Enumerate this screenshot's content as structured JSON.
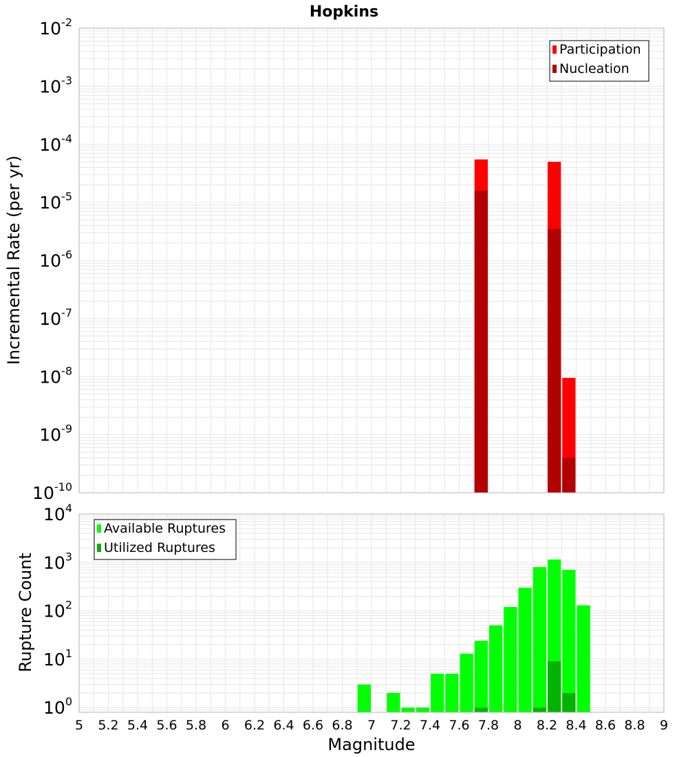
{
  "title": "Hopkins",
  "colors": {
    "participation": "#ff0000",
    "nucleation": "#b30000",
    "available": "#00ff00",
    "utilized": "#00b300",
    "grid": "#e6e6e6",
    "frame": "#b0b0b0"
  },
  "chart_data": [
    {
      "type": "bar",
      "scale": "log",
      "ylabel": "Incremental Rate (per yr)",
      "ylim": [
        1e-10,
        0.01
      ],
      "y_ticks": [
        {
          "base": "10",
          "exp": "-2",
          "value": 0.01
        },
        {
          "base": "10",
          "exp": "-3",
          "value": 0.001
        },
        {
          "base": "10",
          "exp": "-4",
          "value": 0.0001
        },
        {
          "base": "10",
          "exp": "-5",
          "value": 1e-05
        },
        {
          "base": "10",
          "exp": "-6",
          "value": 1e-06
        },
        {
          "base": "10",
          "exp": "-7",
          "value": 1e-07
        },
        {
          "base": "10",
          "exp": "-8",
          "value": 1e-08
        },
        {
          "base": "10",
          "exp": "-9",
          "value": 1e-09
        },
        {
          "base": "10",
          "exp": "-10",
          "value": 1e-10
        }
      ],
      "legend_position": "top-right",
      "series": [
        {
          "name": "Participation",
          "x": [
            7.75,
            8.25,
            8.35
          ],
          "values": [
            5.5e-05,
            5e-05,
            9.5e-09
          ]
        },
        {
          "name": "Nucleation",
          "x": [
            7.75,
            8.25,
            8.35
          ],
          "values": [
            1.6e-05,
            3.5e-06,
            4e-10
          ]
        }
      ]
    },
    {
      "type": "bar",
      "scale": "log",
      "xlabel": "Magnitude",
      "ylabel": "Rupture Count",
      "xlim": [
        5,
        9
      ],
      "ylim": [
        0.8,
        10000
      ],
      "y_ticks": [
        {
          "base": "10",
          "exp": "4",
          "value": 10000
        },
        {
          "base": "10",
          "exp": "3",
          "value": 1000
        },
        {
          "base": "10",
          "exp": "2",
          "value": 100
        },
        {
          "base": "10",
          "exp": "1",
          "value": 10
        },
        {
          "base": "10",
          "exp": "0",
          "value": 1
        }
      ],
      "x_ticks": [
        "5",
        "5.2",
        "5.4",
        "5.6",
        "5.8",
        "6",
        "6.2",
        "6.4",
        "6.6",
        "6.8",
        "7",
        "7.2",
        "7.4",
        "7.6",
        "7.8",
        "8",
        "8.2",
        "8.4",
        "8.6",
        "8.8",
        "9"
      ],
      "legend_position": "top-left",
      "series": [
        {
          "name": "Available Ruptures",
          "x": [
            6.95,
            7.15,
            7.25,
            7.35,
            7.45,
            7.55,
            7.65,
            7.75,
            7.85,
            7.95,
            8.05,
            8.15,
            8.25,
            8.35,
            8.45
          ],
          "values": [
            3,
            2,
            1,
            1,
            5,
            5,
            13,
            24,
            50,
            120,
            300,
            800,
            1150,
            700,
            130
          ]
        },
        {
          "name": "Utilized Ruptures",
          "x": [
            7.75,
            8.15,
            8.25,
            8.35
          ],
          "values": [
            1,
            1,
            9,
            2
          ]
        }
      ]
    }
  ]
}
